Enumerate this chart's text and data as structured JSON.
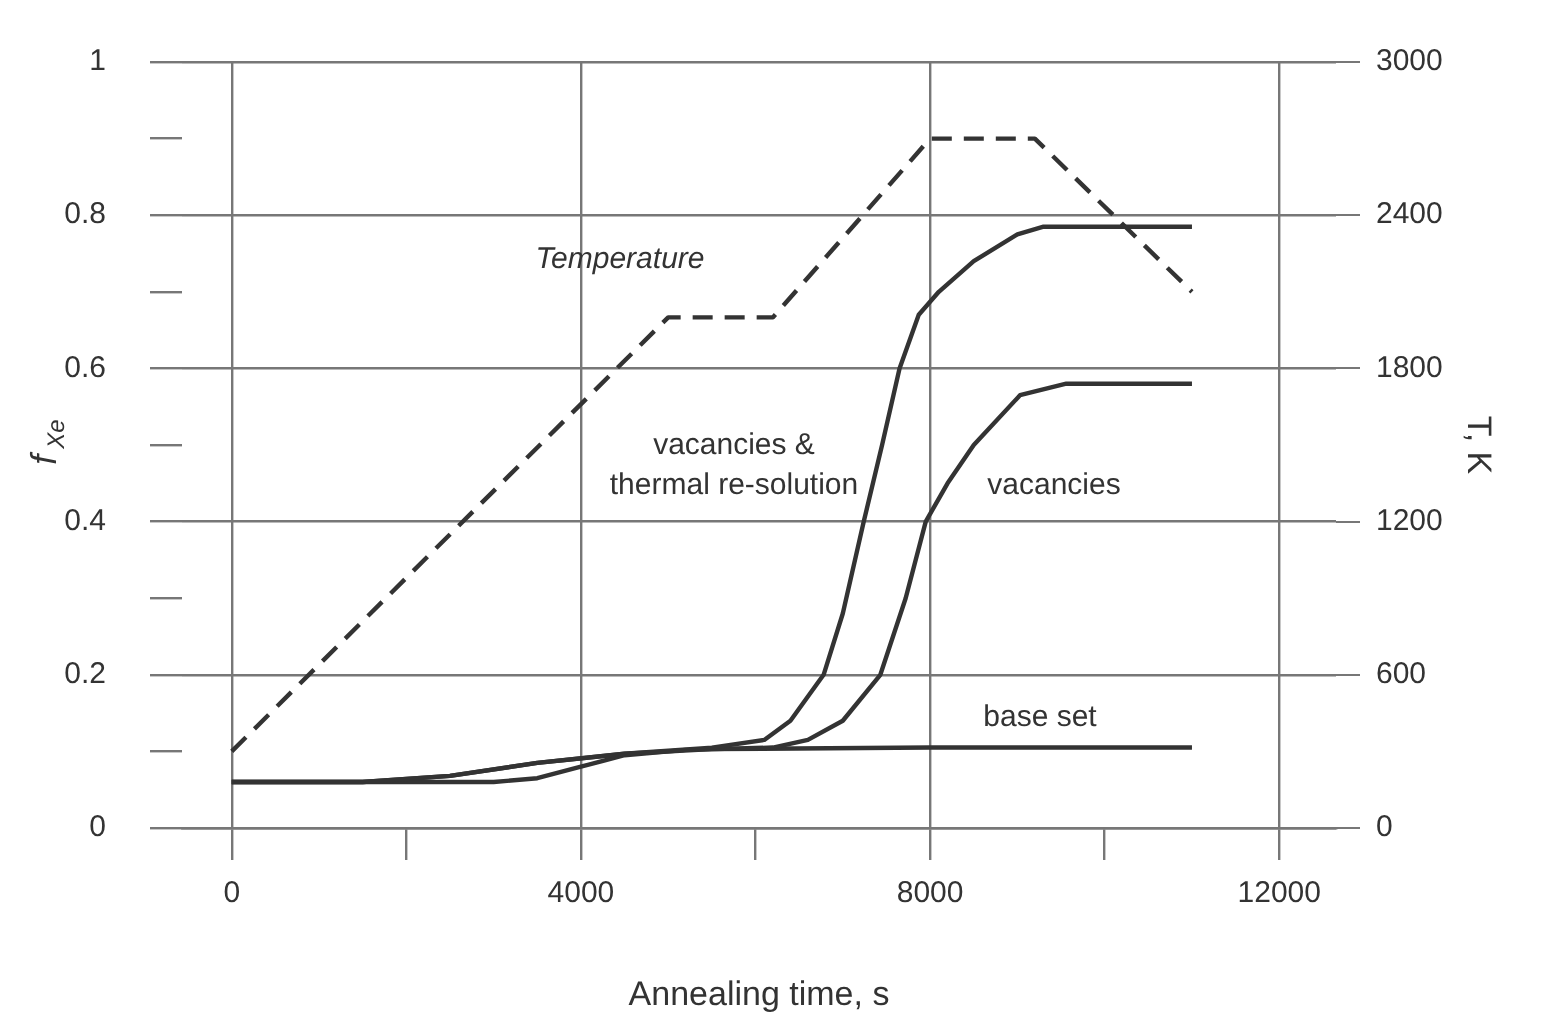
{
  "chart_data": {
    "type": "line",
    "xlabel": "Annealing time, s",
    "ylabel": "f$_{Xe}$",
    "y2label": "T, K",
    "xlim": [
      -570,
      12650
    ],
    "xticks": [
      0,
      {
        "value": 2000,
        "label": null
      },
      4000,
      {
        "value": 6000,
        "label": null
      },
      8000,
      {
        "value": 10000,
        "label": null
      },
      12000
    ],
    "ylim": [
      0,
      1
    ],
    "yticks": [
      0,
      {
        "value": 0.1,
        "label": null
      },
      0.2,
      {
        "value": 0.3,
        "label": null
      },
      0.4,
      {
        "value": 0.5,
        "label": null
      },
      0.6,
      {
        "value": 0.7,
        "label": null
      },
      0.8,
      {
        "value": 0.9,
        "label": null
      },
      1
    ],
    "y2lim": [
      0,
      3000
    ],
    "y2ticks": [
      0,
      600,
      1200,
      1800,
      2400,
      3000
    ],
    "grid": true,
    "legend": false,
    "marker": "none",
    "series": [
      {
        "name": "vacancies &\nthermal re-solution",
        "color": "#333333",
        "line_style": "solid",
        "x": [
          0,
          1500,
          2500,
          3500,
          4500,
          5500,
          6100,
          6400,
          6780,
          7000,
          7240,
          7450,
          7650,
          7870,
          8100,
          8500,
          9000,
          9300,
          11000
        ],
        "values": [
          0.06,
          0.06,
          0.068,
          0.085,
          0.097,
          0.105,
          0.115,
          0.14,
          0.2,
          0.28,
          0.4,
          0.5,
          0.6,
          0.67,
          0.7,
          0.74,
          0.775,
          0.785,
          0.785
        ]
      },
      {
        "name": "vacancies",
        "color": "#333333",
        "line_style": "solid",
        "x": [
          0,
          3000,
          3500,
          4000,
          4500,
          5200,
          6200,
          6600,
          7000,
          7430,
          7720,
          7950,
          8200,
          8500,
          9030,
          9560,
          11000
        ],
        "values": [
          0.06,
          0.06,
          0.065,
          0.08,
          0.095,
          0.102,
          0.105,
          0.115,
          0.14,
          0.2,
          0.3,
          0.4,
          0.45,
          0.5,
          0.565,
          0.58,
          0.58
        ]
      },
      {
        "name": "base set",
        "color": "#333333",
        "line_style": "solid",
        "x": [
          0,
          1500,
          2500,
          3500,
          4500,
          5500,
          8000,
          11000
        ],
        "values": [
          0.06,
          0.06,
          0.068,
          0.085,
          0.097,
          0.103,
          0.105,
          0.105
        ]
      },
      {
        "name": "Temperature",
        "color": "#333333",
        "line_style": "dashed",
        "axis": "y2",
        "x": [
          0,
          5000,
          6200,
          8000,
          9200,
          11000
        ],
        "values": [
          300,
          2000,
          2000,
          2700,
          2700,
          2100
        ]
      }
    ]
  }
}
